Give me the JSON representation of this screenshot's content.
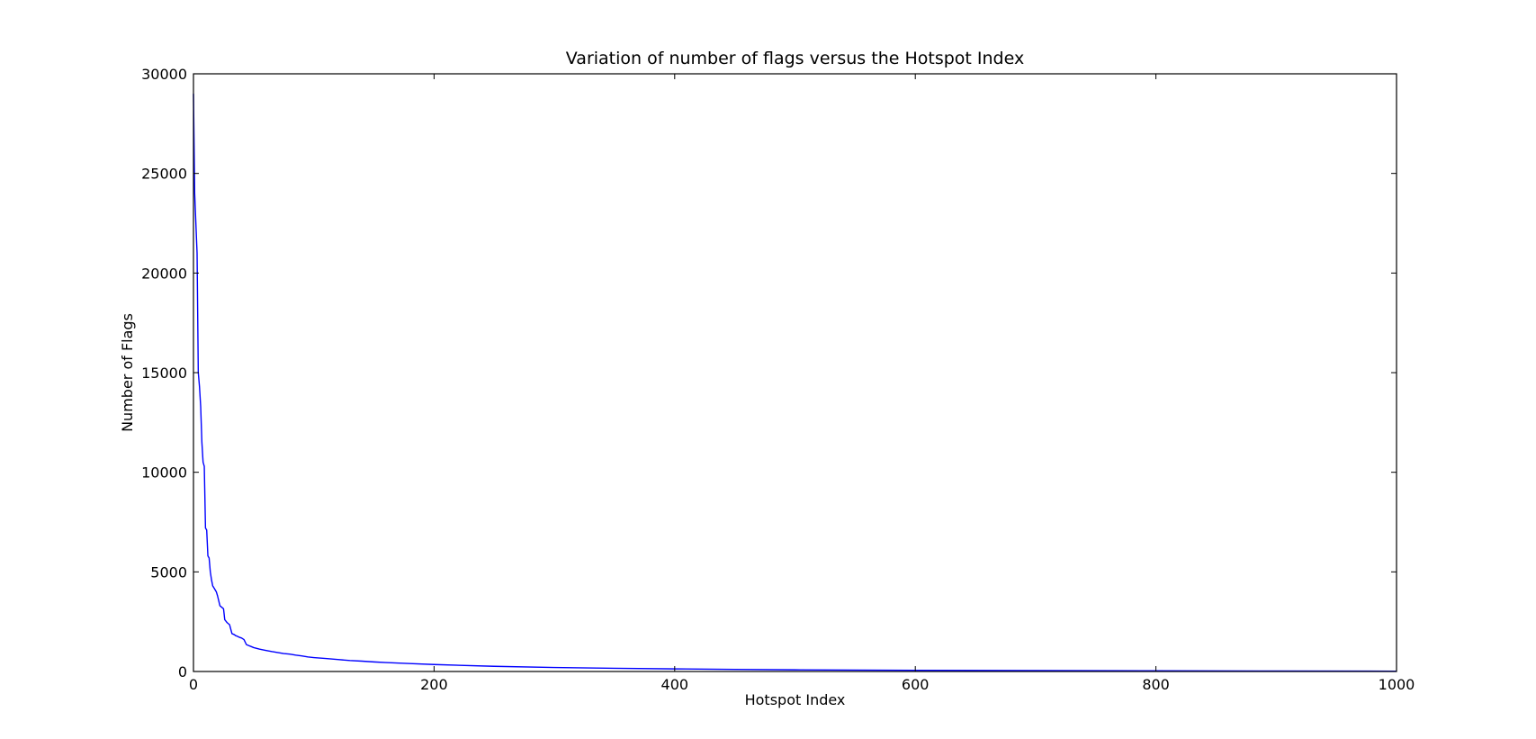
{
  "chart_data": {
    "type": "line",
    "title": "Variation of number of flags versus the Hotspot Index",
    "xlabel": "Hotspot Index",
    "ylabel": "Number of Flags",
    "xlim": [
      0,
      1000
    ],
    "ylim": [
      0,
      30000
    ],
    "xticks": [
      0,
      200,
      400,
      600,
      800,
      1000
    ],
    "yticks": [
      0,
      5000,
      10000,
      15000,
      20000,
      25000,
      30000
    ],
    "grid": false,
    "line_color": "#0000ff",
    "series": [
      {
        "x": [
          0,
          1,
          2,
          3,
          4,
          5,
          6,
          7,
          8,
          9,
          10,
          11,
          12,
          13,
          14,
          15,
          16,
          17,
          18,
          19,
          20,
          22,
          24,
          25,
          26,
          28,
          29,
          30,
          32,
          34,
          35,
          36,
          38,
          40,
          42,
          44,
          46,
          48,
          50,
          55,
          60,
          65,
          70,
          75,
          80,
          85,
          90,
          95,
          100,
          110,
          120,
          130,
          140,
          150,
          160,
          180,
          200,
          250,
          300,
          350,
          400,
          450,
          500,
          550,
          600,
          700,
          800,
          900,
          1000
        ],
        "y": [
          29000,
          24000,
          22500,
          21000,
          15000,
          14300,
          13300,
          11500,
          10500,
          10300,
          7200,
          7100,
          5800,
          5700,
          5000,
          4600,
          4300,
          4200,
          4100,
          4000,
          3800,
          3300,
          3200,
          3150,
          2600,
          2450,
          2400,
          2350,
          1900,
          1850,
          1800,
          1780,
          1720,
          1680,
          1600,
          1350,
          1300,
          1250,
          1200,
          1120,
          1060,
          1000,
          950,
          900,
          870,
          820,
          780,
          730,
          700,
          650,
          600,
          550,
          520,
          480,
          450,
          400,
          350,
          260,
          200,
          160,
          130,
          105,
          85,
          70,
          60,
          45,
          35,
          25,
          15
        ]
      }
    ]
  }
}
